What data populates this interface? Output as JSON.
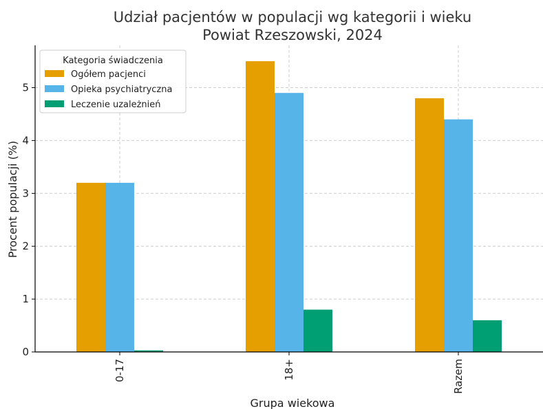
{
  "chart_data": {
    "type": "bar",
    "title": "Udział pacjentów w populacji wg kategorii i wieku",
    "subtitle": "Powiat Rzeszowski, 2024",
    "xlabel": "Grupa wiekowa",
    "ylabel": "Procent populacji (%)",
    "categories": [
      "0-17",
      "18+",
      "Razem"
    ],
    "ylim": [
      0,
      5.8
    ],
    "yticks": [
      0,
      1,
      2,
      3,
      4,
      5
    ],
    "grid": true,
    "legend": {
      "title": "Kategoria świadczenia",
      "placement": "top-left"
    },
    "series": [
      {
        "name": "Ogółem pacjenci",
        "color": "#E69F00",
        "values": [
          3.2,
          5.5,
          4.8
        ]
      },
      {
        "name": "Opieka psychiatryczna",
        "color": "#56B4E9",
        "values": [
          3.2,
          4.9,
          4.4
        ]
      },
      {
        "name": "Leczenie uzależnień",
        "color": "#009E73",
        "values": [
          0.03,
          0.8,
          0.6
        ]
      }
    ]
  }
}
